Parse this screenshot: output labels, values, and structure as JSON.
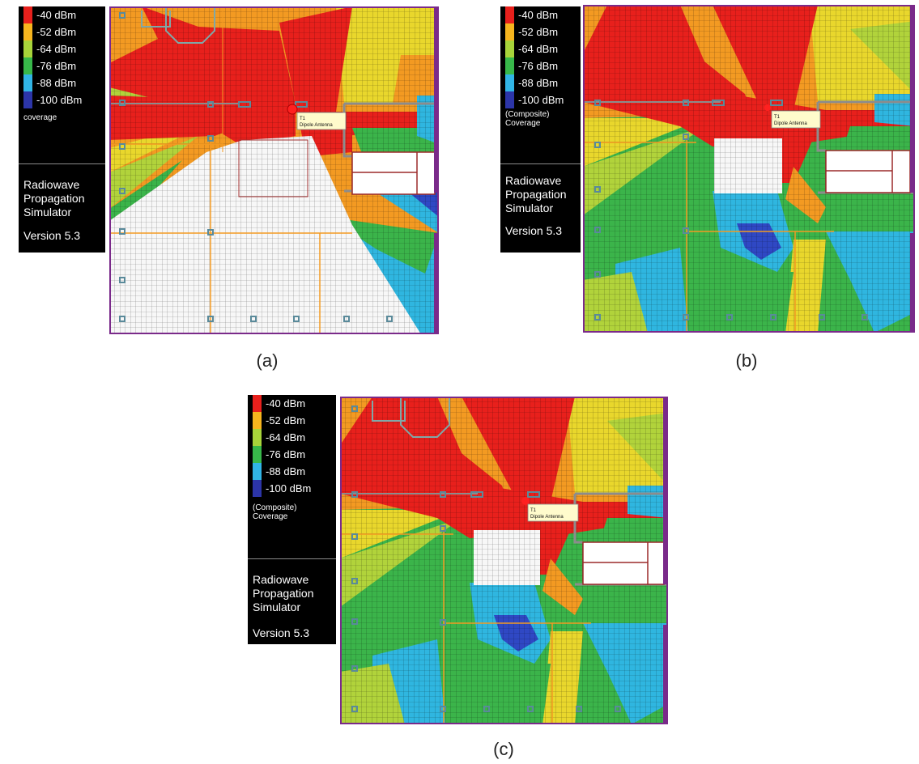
{
  "legend": {
    "entries": [
      {
        "label": "-40 dBm",
        "color": "#e8201c"
      },
      {
        "label": "-52 dBm",
        "color": "#f7b51e"
      },
      {
        "label": "-64 dBm",
        "color": "#a8d43a"
      },
      {
        "label": "-76 dBm",
        "color": "#38b84a"
      },
      {
        "label": "-88 dBm",
        "color": "#31b5e6"
      },
      {
        "label": "-100 dBm",
        "color": "#2c35a8"
      }
    ],
    "simulator_lines": [
      "Radiowave",
      "Propagation",
      "Simulator"
    ],
    "version": "Version 5.3"
  },
  "panels": [
    {
      "coverage_lines": [
        "coverage"
      ],
      "caption": "(a)"
    },
    {
      "coverage_lines": [
        "(Composite)",
        "Coverage"
      ],
      "caption": "(b)"
    },
    {
      "coverage_lines": [
        "(Composite)",
        "Coverage"
      ],
      "caption": "(c)"
    }
  ],
  "transmitter": {
    "id": "T1",
    "type": "Dipole Antenna"
  },
  "colors": {
    "red": "#e8201c",
    "orange": "#f39a22",
    "yellow": "#e9d72c",
    "lightgreen": "#b1d33b",
    "green": "#3bb44a",
    "cyan": "#2fb6e0",
    "blue": "#2f48c4",
    "white": "#f7f7f7",
    "frame": "#7a2a8a",
    "wall": "#8c8c8c"
  }
}
